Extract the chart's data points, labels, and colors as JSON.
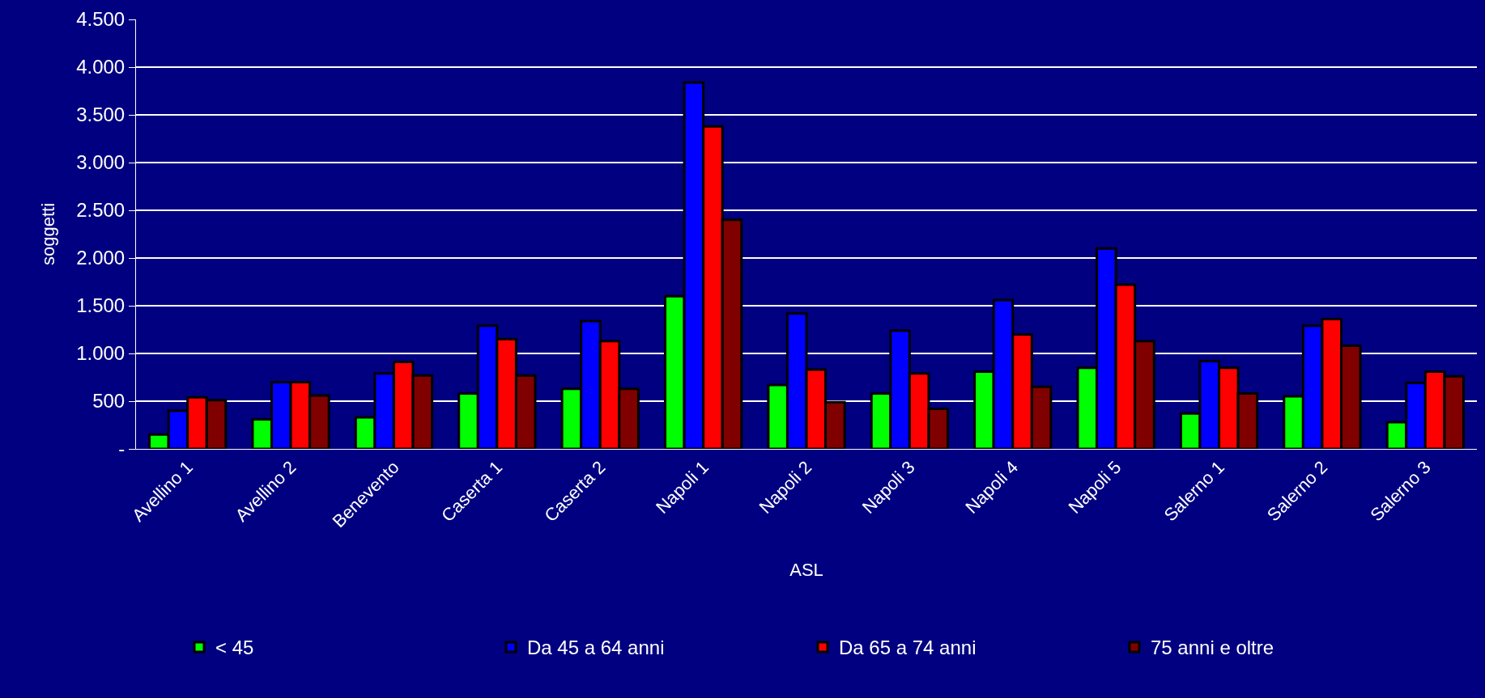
{
  "chart_data": {
    "type": "bar",
    "xlabel": "ASL",
    "ylabel": "soggetti",
    "categories": [
      "Avellino 1",
      "Avellino 2",
      "Benevento",
      "Caserta 1",
      "Caserta 2",
      "Napoli 1",
      "Napoli 2",
      "Napoli 3",
      "Napoli 4",
      "Napoli 5",
      "Salerno 1",
      "Salerno 2",
      "Salerno 3"
    ],
    "series": [
      {
        "name": "< 45",
        "color": "#00ff00",
        "values": [
          150,
          310,
          330,
          580,
          630,
          1600,
          670,
          580,
          810,
          850,
          370,
          550,
          280
        ]
      },
      {
        "name": "Da 45 a 64 anni",
        "color": "#0000ff",
        "values": [
          400,
          700,
          790,
          1290,
          1340,
          3840,
          1420,
          1240,
          1560,
          2100,
          920,
          1290,
          690
        ]
      },
      {
        "name": "Da 65 a 74 anni",
        "color": "#ff0000",
        "values": [
          540,
          700,
          910,
          1150,
          1130,
          3380,
          830,
          790,
          1200,
          1720,
          850,
          1360,
          810
        ]
      },
      {
        "name": "75 anni e oltre",
        "color": "#800000",
        "values": [
          510,
          560,
          770,
          770,
          630,
          2400,
          490,
          420,
          650,
          1130,
          580,
          1080,
          760
        ]
      }
    ],
    "ylim": [
      0,
      4500
    ],
    "yticks": [
      {
        "value": 0,
        "label": "-"
      },
      {
        "value": 500,
        "label": "500"
      },
      {
        "value": 1000,
        "label": "1.000"
      },
      {
        "value": 1500,
        "label": "1.500"
      },
      {
        "value": 2000,
        "label": "2.000"
      },
      {
        "value": 2500,
        "label": "2.500"
      },
      {
        "value": 3000,
        "label": "3.000"
      },
      {
        "value": 3500,
        "label": "3.500"
      },
      {
        "value": 4000,
        "label": "4.000"
      },
      {
        "value": 4500,
        "label": "4.500"
      }
    ],
    "grid": "y",
    "legend": "bottom"
  }
}
